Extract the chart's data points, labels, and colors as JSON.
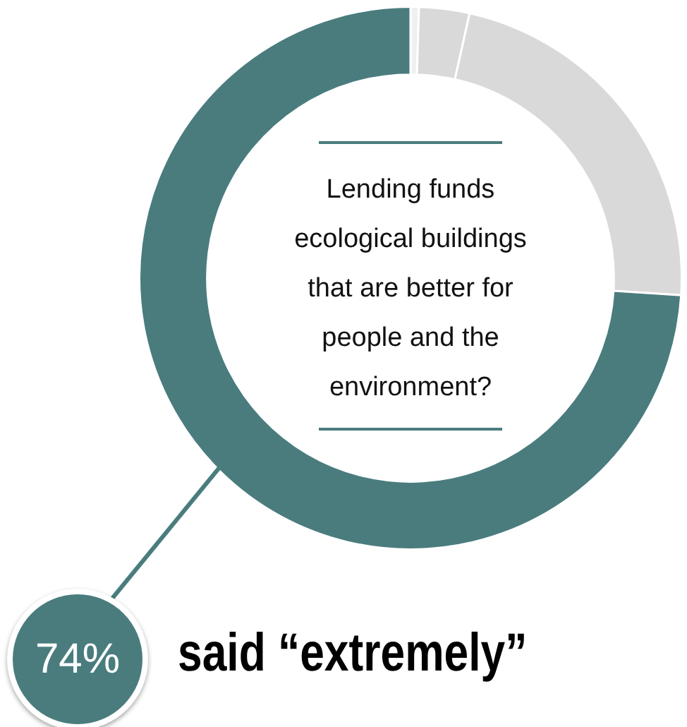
{
  "chart_data": {
    "type": "donut",
    "title": "Lending funds ecological buildings that are better for people and the environment?",
    "categories": [
      null,
      null,
      null,
      null
    ],
    "values": [
      0.5,
      3,
      22.5,
      74
    ],
    "colors": [
      "#f0f0f0",
      "#d9d9d9",
      "#d9d9d9",
      "#4a7c7e"
    ],
    "value_labels": [
      null,
      null,
      null,
      "74%"
    ],
    "annotations": [
      "said “extremely”"
    ],
    "legend": false
  }
}
